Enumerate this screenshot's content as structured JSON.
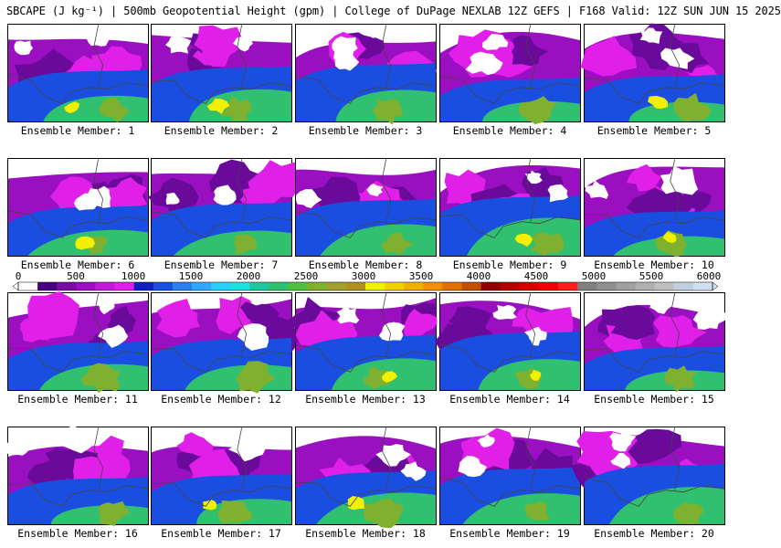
{
  "title": "SBCAPE (J kg⁻¹) | 500mb Geopotential Height (gpm) | College of DuPage NEXLAB 12Z GEFS | F168 Valid: 12Z SUN JUN 15 2025",
  "panels": [
    {
      "label": "Ensemble Member: 1"
    },
    {
      "label": "Ensemble Member: 2"
    },
    {
      "label": "Ensemble Member: 3"
    },
    {
      "label": "Ensemble Member: 4"
    },
    {
      "label": "Ensemble Member: 5"
    },
    {
      "label": "Ensemble Member: 6"
    },
    {
      "label": "Ensemble Member: 7"
    },
    {
      "label": "Ensemble Member: 8"
    },
    {
      "label": "Ensemble Member: 9"
    },
    {
      "label": "Ensemble Member: 10"
    },
    {
      "label": "Ensemble Member: 11"
    },
    {
      "label": "Ensemble Member: 12"
    },
    {
      "label": "Ensemble Member: 13"
    },
    {
      "label": "Ensemble Member: 14"
    },
    {
      "label": "Ensemble Member: 15"
    },
    {
      "label": "Ensemble Member: 16"
    },
    {
      "label": "Ensemble Member: 17"
    },
    {
      "label": "Ensemble Member: 18"
    },
    {
      "label": "Ensemble Member: 19"
    },
    {
      "label": "Ensemble Member: 20"
    }
  ],
  "colorbar": {
    "ticks": [
      "0",
      "500",
      "1000",
      "1500",
      "2000",
      "2500",
      "3000",
      "3500",
      "4000",
      "4500",
      "5000",
      "5500",
      "6000"
    ],
    "colors": [
      "#ffffff",
      "#4b0082",
      "#7a0da0",
      "#9a10c0",
      "#c21ad8",
      "#e020e8",
      "#1020c0",
      "#1a4ee0",
      "#2a80f0",
      "#30a8ff",
      "#28d0ff",
      "#20e0e0",
      "#20c8a0",
      "#30c070",
      "#50c040",
      "#80b030",
      "#a0a030",
      "#b09020",
      "#f0f000",
      "#f0d000",
      "#f0b000",
      "#f09000",
      "#e07000",
      "#c05000",
      "#900000",
      "#b00000",
      "#d00000",
      "#f00000",
      "#ff2020",
      "#808080",
      "#909090",
      "#a0a0a0",
      "#b0b0b0",
      "#c0c0c0",
      "#c0d0e0",
      "#d0e0f0"
    ]
  }
}
